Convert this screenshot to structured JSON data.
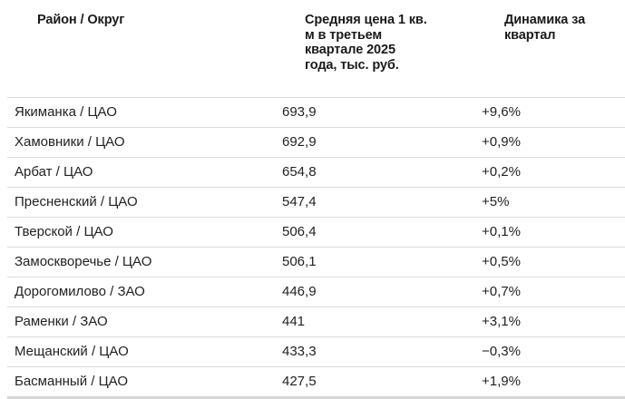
{
  "table": {
    "headers": [
      "Район / Округ",
      "Средняя цена 1 кв. м в третьем квартале 2025 года, тыс. руб.",
      "Динамика за квартал"
    ],
    "header_lines": {
      "col2": [
        "Средняя цена 1 кв.",
        "м в третьем",
        "квартале 2025",
        "года, тыс. руб."
      ],
      "col3": [
        "Динамика за",
        "квартал"
      ]
    },
    "rows": [
      {
        "district": "Якиманка / ЦАО",
        "price": "693,9",
        "change": "+9,6%"
      },
      {
        "district": "Хамовники / ЦАО",
        "price": "692,9",
        "change": "+0,9%"
      },
      {
        "district": "Арбат / ЦАО",
        "price": "654,8",
        "change": "+0,2%"
      },
      {
        "district": "Пресненский / ЦАО",
        "price": "547,4",
        "change": "+5%"
      },
      {
        "district": "Тверской / ЦАО",
        "price": "506,4",
        "change": "+0,1%"
      },
      {
        "district": "Замоскворечье / ЦАО",
        "price": "506,1",
        "change": "+0,5%"
      },
      {
        "district": "Дорогомилово / ЗАО",
        "price": "446,9",
        "change": "+0,7%"
      },
      {
        "district": "Раменки / ЗАО",
        "price": "441",
        "change": "+3,1%"
      },
      {
        "district": "Мещанский / ЦАО",
        "price": "433,3",
        "change": "−0,3%"
      },
      {
        "district": "Басманный / ЦАО",
        "price": "427,5",
        "change": "+1,9%"
      }
    ]
  },
  "colors": {
    "text": "#222222",
    "header_text": "#1a1a1a",
    "row_border": "#dcdcdc",
    "bottom_border": "#d6d6d6",
    "background": "#ffffff"
  }
}
